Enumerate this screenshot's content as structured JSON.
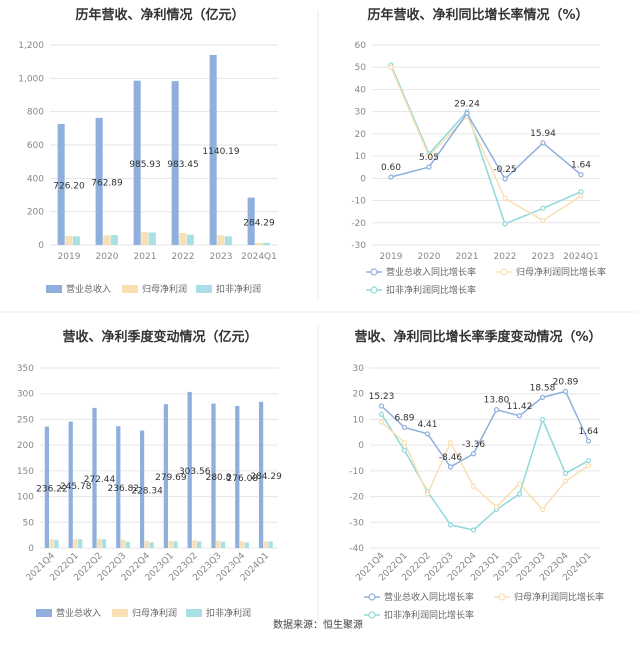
{
  "colors": {
    "revenue": "#8fb0dc",
    "net_profit": "#f9dfb4",
    "deducted_profit": "#a9e0e5",
    "rev_line": "#8fb0dc",
    "np_line": "#f9dfb4",
    "dp_line": "#8fd8dc",
    "grid": "#e6e6e6",
    "divider": "#dddddd"
  },
  "legend": {
    "revenue": "营业总收入",
    "net_profit": "归母净利润",
    "deducted_profit": "扣非净利润",
    "rev_growth": "营业总收入同比增长率",
    "np_growth": "归母净利润同比增长率",
    "dp_growth": "扣非净利润同比增长率"
  },
  "source": "数据来源：恒生聚源",
  "chart_data": [
    {
      "type": "bar",
      "title": "历年营收、净利情况（亿元）",
      "categories": [
        "2019",
        "2020",
        "2021",
        "2022",
        "2023",
        "2024Q1"
      ],
      "ylim": [
        0,
        1200
      ],
      "yticks": [
        0,
        200,
        400,
        600,
        800,
        1000,
        1200
      ],
      "ytick_labels": [
        "0",
        "200",
        "400",
        "600",
        "800",
        "1,000",
        "1,200"
      ],
      "grid": true,
      "legend_position": "bottom",
      "series": [
        {
          "name": "营业总收入",
          "values": [
            726.2,
            762.89,
            985.93,
            983.45,
            1140.19,
            284.29
          ],
          "labels": [
            "726.20",
            "762.89",
            "985.93",
            "983.45",
            "1140.19",
            "284.29"
          ]
        },
        {
          "name": "归母净利润",
          "values": [
            55,
            58,
            78,
            72,
            58,
            12
          ]
        },
        {
          "name": "扣非净利润",
          "values": [
            52,
            60,
            75,
            62,
            52,
            13
          ]
        }
      ]
    },
    {
      "type": "line",
      "title": "历年营收、净利同比增长率情况（%）",
      "categories": [
        "2019",
        "2020",
        "2021",
        "2022",
        "2023",
        "2024Q1"
      ],
      "ylim": [
        -30,
        60
      ],
      "yticks": [
        -30,
        -20,
        -10,
        0,
        10,
        20,
        30,
        40,
        50,
        60
      ],
      "grid": true,
      "legend_position": "bottom",
      "series": [
        {
          "name": "营业总收入同比增长率",
          "values": [
            0.6,
            5.05,
            29.24,
            -0.25,
            15.94,
            1.64
          ],
          "labels": [
            "0.60",
            "5.05",
            "29.24",
            "-0.25",
            "15.94",
            "1.64"
          ]
        },
        {
          "name": "归母净利润同比增长率",
          "values": [
            50,
            10,
            28,
            -9,
            -19,
            -8
          ]
        },
        {
          "name": "扣非净利润同比增长率",
          "values": [
            51,
            11,
            30,
            -20.5,
            -13.5,
            -6
          ]
        }
      ]
    },
    {
      "type": "bar",
      "title": "营收、净利季度变动情况（亿元）",
      "categories": [
        "2021Q4",
        "2022Q1",
        "2022Q2",
        "2022Q3",
        "2022Q4",
        "2023Q1",
        "2023Q2",
        "2023Q3",
        "2023Q4",
        "2024Q1"
      ],
      "ylim": [
        0,
        350
      ],
      "yticks": [
        0,
        50,
        100,
        150,
        200,
        250,
        300,
        350
      ],
      "grid": true,
      "legend_position": "bottom",
      "series": [
        {
          "name": "营业总收入",
          "values": [
            236.22,
            245.78,
            272.44,
            236.82,
            228.34,
            279.69,
            303.56,
            280.8,
            276.08,
            284.29
          ],
          "labels": [
            "236.22",
            "245.78",
            "272.44",
            "236.82",
            "228.34",
            "279.69",
            "303.56",
            "280.8",
            "276.08",
            "284.29"
          ]
        },
        {
          "name": "归母净利润",
          "values": [
            17,
            17,
            18,
            16,
            14,
            14,
            15,
            14,
            13,
            13
          ]
        },
        {
          "name": "扣非净利润",
          "values": [
            16,
            17,
            17,
            12,
            11,
            13,
            13,
            12,
            11,
            13
          ]
        }
      ]
    },
    {
      "type": "line",
      "title": "营收、净利同比增长率季度变动情况（%）",
      "categories": [
        "2021Q4",
        "2022Q1",
        "2022Q2",
        "2022Q3",
        "2022Q4",
        "2023Q1",
        "2023Q2",
        "2023Q3",
        "2023Q4",
        "2024Q1"
      ],
      "ylim": [
        -40,
        30
      ],
      "yticks": [
        -40,
        -30,
        -20,
        -10,
        0,
        10,
        20,
        30
      ],
      "grid": true,
      "legend_position": "bottom",
      "series": [
        {
          "name": "营业总收入同比增长率",
          "values": [
            15.23,
            6.89,
            4.41,
            -8.46,
            -3.36,
            13.8,
            11.42,
            18.58,
            20.89,
            1.64
          ],
          "labels": [
            "15.23",
            "6.89",
            "4.41",
            "-8.46",
            "-3.36",
            "13.80",
            "11.42",
            "18.58",
            "20.89",
            "1.64"
          ]
        },
        {
          "name": "归母净利润同比增长率",
          "values": [
            9,
            1,
            -19,
            1,
            -16,
            -24,
            -15,
            -25,
            -14,
            -8
          ]
        },
        {
          "name": "扣非净利润同比增长率",
          "values": [
            12,
            -2,
            -18,
            -31,
            -33,
            -25,
            -19,
            10,
            -11,
            -6
          ]
        }
      ]
    }
  ]
}
